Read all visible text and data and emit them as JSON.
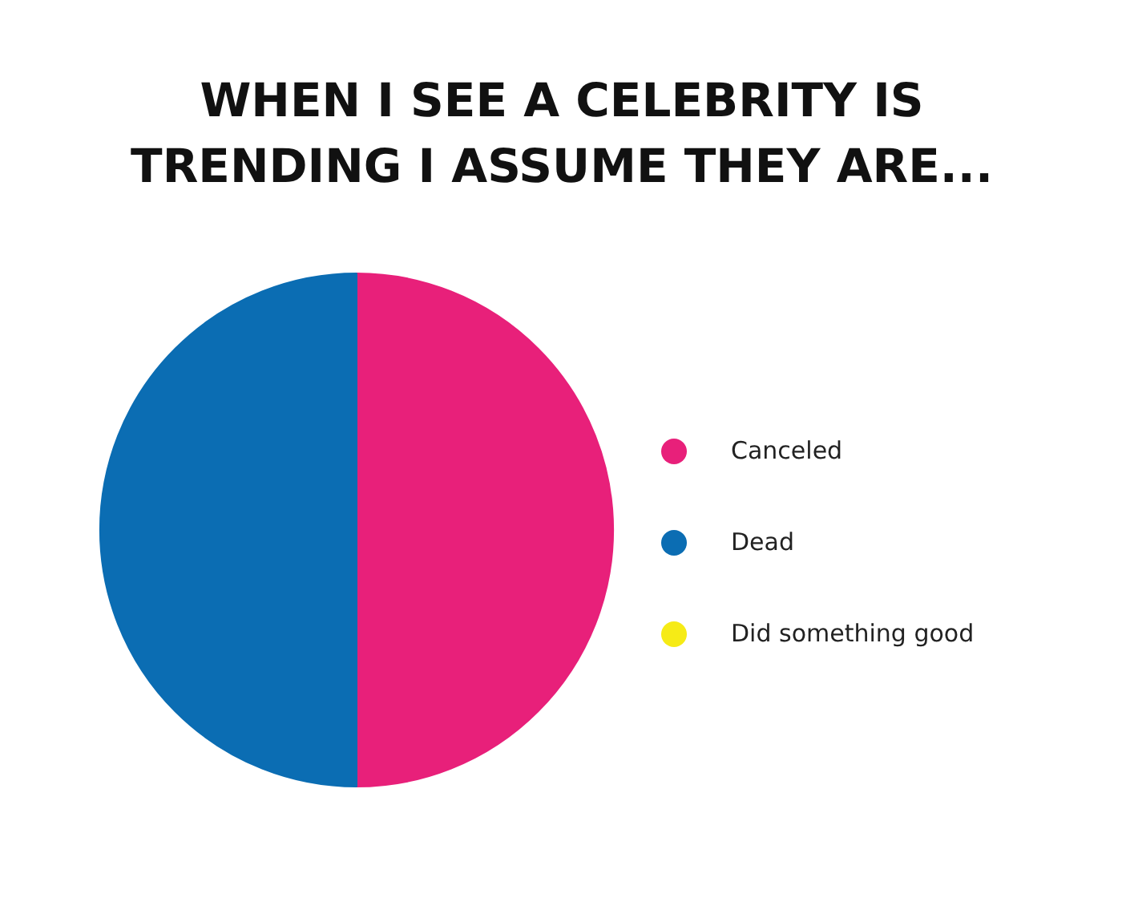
{
  "chart_data": {
    "type": "pie",
    "title": "WHEN I SEE A CELEBRITY IS\nTRENDING I ASSUME THEY ARE...",
    "categories": [
      "Canceled",
      "Dead",
      "Did something good"
    ],
    "values": [
      50,
      50,
      0
    ],
    "colors": [
      "#e8207a",
      "#0b6db3",
      "#f6eb16"
    ],
    "legend": "right"
  }
}
